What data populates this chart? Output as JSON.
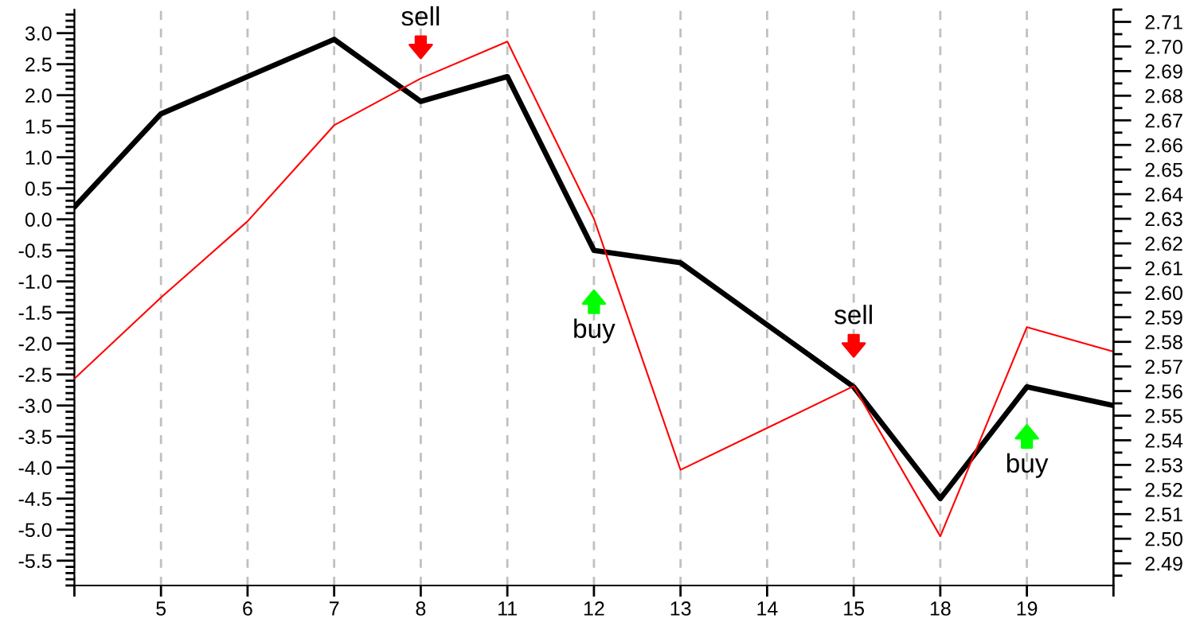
{
  "chart_data": {
    "type": "line",
    "categories": [
      null,
      "5",
      "6",
      "7",
      "8",
      "11",
      "12",
      "13",
      "14",
      "15",
      "18",
      "19",
      null
    ],
    "ylim": [
      -5.9,
      3.38
    ],
    "yticks": [
      -5.5,
      {
        "value": -5,
        "label": "-5.0"
      },
      -4.5,
      {
        "value": -4,
        "label": "-4.0"
      },
      -3.5,
      {
        "value": -3,
        "label": "-3.0"
      },
      -2.5,
      {
        "value": -2,
        "label": "-2.0"
      },
      -1.5,
      {
        "value": -1,
        "label": "-1.0"
      },
      -0.5,
      {
        "value": 0,
        "label": "0.0"
      },
      0.5,
      {
        "value": 1,
        "label": "1.0"
      },
      1.5,
      {
        "value": 2,
        "label": "2.0"
      },
      2.5,
      {
        "value": 3,
        "label": "3.0"
      }
    ],
    "y2lim": [
      2.481,
      2.715
    ],
    "y2ticks": [
      2.49,
      {
        "value": 2.5,
        "label": "2.50"
      },
      2.51,
      2.52,
      2.53,
      2.54,
      2.55,
      2.56,
      2.57,
      2.58,
      2.59,
      {
        "value": 2.6,
        "label": "2.60"
      },
      2.61,
      2.62,
      2.63,
      2.64,
      2.65,
      2.66,
      2.67,
      2.68,
      2.69,
      {
        "value": 2.7,
        "label": "2.70"
      },
      2.71
    ],
    "grid": "x",
    "series": [
      {
        "color": "#000000",
        "values": [
          0.2,
          1.7,
          2.3,
          2.9,
          1.9,
          2.3,
          -0.5,
          -0.7,
          -1.7,
          -2.7,
          -4.5,
          -2.7,
          -3.0
        ]
      },
      {
        "color": "#ff0000",
        "axis": "y2",
        "values": [
          2.565,
          2.598,
          2.629,
          2.668,
          2.687,
          2.702,
          2.63,
          2.528,
          2.545,
          2.562,
          2.501,
          2.586,
          2.576
        ]
      }
    ],
    "annotations": [
      {
        "text": "sell",
        "x": "8",
        "y": 2.11
      },
      {
        "text": "buy",
        "x": "12",
        "y": -0.53
      },
      {
        "text": "sell",
        "x": "15",
        "y": -2.7
      },
      {
        "text": "buy",
        "x": "19",
        "y": -2.7
      }
    ]
  }
}
